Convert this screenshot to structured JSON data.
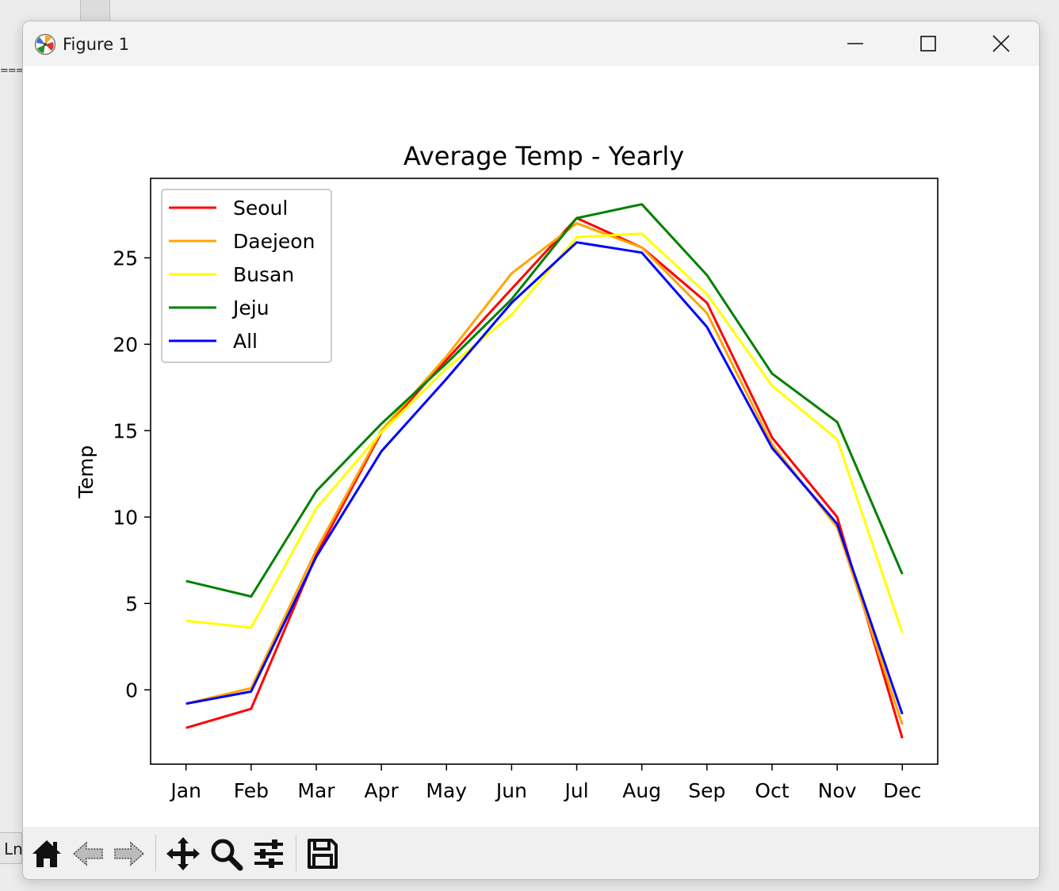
{
  "window": {
    "title": "Figure 1"
  },
  "background": {
    "side_label": "Ln"
  },
  "toolbar": {
    "buttons": [
      {
        "name": "home",
        "icon": "home-icon"
      },
      {
        "name": "back",
        "icon": "arrow-left-icon"
      },
      {
        "name": "forward",
        "icon": "arrow-right-icon"
      },
      {
        "name": "pan",
        "icon": "move-icon"
      },
      {
        "name": "zoom",
        "icon": "magnifier-icon"
      },
      {
        "name": "configure-subplots",
        "icon": "sliders-icon"
      },
      {
        "name": "save",
        "icon": "floppy-disk-icon"
      }
    ]
  },
  "chart_data": {
    "type": "line",
    "title": "Average Temp - Yearly",
    "xlabel": "",
    "ylabel": "Temp",
    "categories": [
      "Jan",
      "Feb",
      "Mar",
      "Apr",
      "May",
      "Jun",
      "Jul",
      "Aug",
      "Sep",
      "Oct",
      "Nov",
      "Dec"
    ],
    "yticks": [
      0,
      5,
      10,
      15,
      20,
      25
    ],
    "ylim": [
      -4.3,
      29.6
    ],
    "grid": false,
    "legend_position": "upper-left",
    "series": [
      {
        "name": "Seoul",
        "color": "#ff0000",
        "values": [
          -2.2,
          -1.1,
          7.8,
          14.9,
          19.1,
          23.2,
          27.3,
          25.6,
          22.4,
          14.6,
          10.0,
          -2.8
        ]
      },
      {
        "name": "Daejeon",
        "color": "#ffa500",
        "values": [
          -0.8,
          0.1,
          8.1,
          15.0,
          19.3,
          24.1,
          27.0,
          25.6,
          21.8,
          14.2,
          9.4,
          -2.0
        ]
      },
      {
        "name": "Busan",
        "color": "#ffff00",
        "values": [
          4.0,
          3.6,
          10.5,
          14.9,
          18.6,
          21.7,
          26.2,
          26.4,
          22.9,
          17.6,
          14.5,
          3.3
        ]
      },
      {
        "name": "Jeju",
        "color": "#008000",
        "values": [
          6.3,
          5.4,
          11.5,
          15.4,
          18.9,
          22.6,
          27.3,
          28.1,
          24.0,
          18.3,
          15.5,
          6.7
        ]
      },
      {
        "name": "All",
        "color": "#0000ff",
        "values": [
          -0.8,
          -0.1,
          7.7,
          13.8,
          18.0,
          22.4,
          25.9,
          25.3,
          21.0,
          14.0,
          9.6,
          -1.4
        ]
      }
    ]
  }
}
